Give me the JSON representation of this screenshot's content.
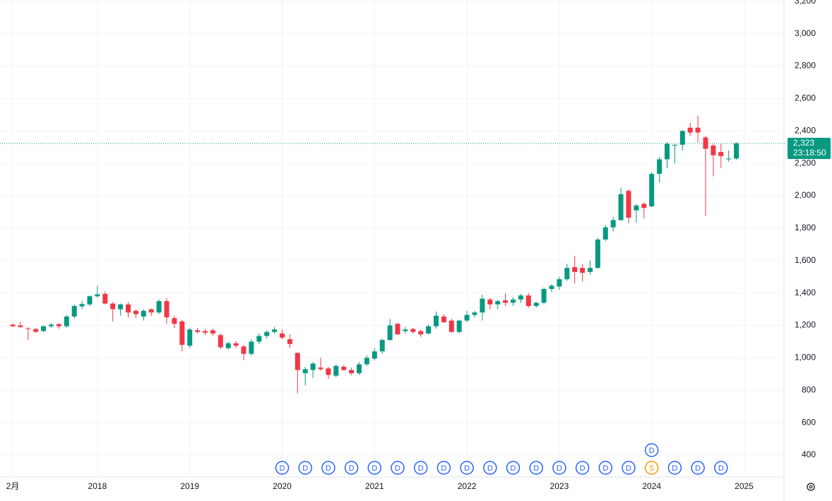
{
  "chart_data": {
    "type": "candlestick",
    "categories": [
      "2月",
      null,
      null,
      null,
      null,
      null,
      null,
      null,
      null,
      null,
      null,
      "2018",
      null,
      null,
      null,
      null,
      null,
      null,
      null,
      null,
      null,
      null,
      null,
      "2019",
      null,
      null,
      null,
      null,
      null,
      null,
      null,
      null,
      null,
      null,
      null,
      "2020",
      null,
      null,
      null,
      null,
      null,
      null,
      null,
      null,
      null,
      null,
      null,
      "2021",
      null,
      null,
      null,
      null,
      null,
      null,
      null,
      null,
      null,
      null,
      null,
      "2022",
      null,
      null,
      null,
      null,
      null,
      null,
      null,
      null,
      null,
      null,
      null,
      "2023",
      null,
      null,
      null,
      null,
      null,
      null,
      null,
      null,
      null,
      null,
      null,
      "2024",
      null,
      null,
      null,
      null,
      null,
      null,
      null,
      null,
      null,
      null,
      null,
      "2025"
    ],
    "open": [
      1205,
      1200,
      1182,
      1178,
      1165,
      1195,
      1208,
      1195,
      1255,
      1318,
      1330,
      1380,
      1395,
      1335,
      1300,
      1330,
      1290,
      1255,
      1300,
      1280,
      1350,
      1245,
      1225,
      1075,
      1170,
      1165,
      1170,
      1140,
      1060,
      1090,
      1070,
      1025,
      1100,
      1135,
      1160,
      1150,
      1115,
      1030,
      905,
      925,
      940,
      935,
      890,
      945,
      925,
      905,
      960,
      995,
      1040,
      1110,
      1210,
      1165,
      1178,
      1165,
      1150,
      1195,
      1255,
      1230,
      1160,
      1230,
      1265,
      1280,
      1360,
      1330,
      1355,
      1340,
      1360,
      1385,
      1320,
      1340,
      1425,
      1440,
      1485,
      1560,
      1555,
      1530,
      1555,
      1730,
      1805,
      1850,
      2030,
      1910,
      1950,
      1935,
      2135,
      2225,
      2310,
      2315,
      2420,
      2420,
      2360,
      2310,
      2270,
      2225,
      2230,
      null
    ],
    "high": [
      1212,
      1225,
      1190,
      1185,
      1200,
      1215,
      1215,
      1265,
      1330,
      1350,
      1385,
      1445,
      1410,
      1345,
      1335,
      1345,
      1300,
      1300,
      1305,
      1360,
      1370,
      1260,
      1235,
      1185,
      1185,
      1180,
      1180,
      1150,
      1100,
      1105,
      1080,
      1115,
      1150,
      1170,
      1190,
      1175,
      1145,
      1035,
      945,
      975,
      1000,
      945,
      960,
      955,
      940,
      975,
      1015,
      1060,
      1120,
      1240,
      1215,
      1190,
      1185,
      1175,
      1205,
      1285,
      1270,
      1240,
      1235,
      1290,
      1290,
      1390,
      1370,
      1360,
      1400,
      1375,
      1395,
      1400,
      1345,
      1435,
      1455,
      1500,
      1580,
      1630,
      1580,
      1600,
      1740,
      1820,
      1870,
      2050,
      2040,
      1950,
      1960,
      2145,
      2240,
      2330,
      2315,
      2405,
      2450,
      2495,
      2370,
      2320,
      2320,
      2280,
      2330,
      null
    ],
    "low": [
      1190,
      1185,
      1110,
      1155,
      1160,
      1185,
      1180,
      1185,
      1245,
      1300,
      1320,
      1370,
      1330,
      1225,
      1260,
      1250,
      1245,
      1230,
      1260,
      1270,
      1210,
      1185,
      1040,
      1060,
      1150,
      1140,
      1135,
      1055,
      1050,
      1060,
      985,
      1015,
      1085,
      1120,
      1150,
      1115,
      1060,
      780,
      830,
      875,
      920,
      870,
      880,
      920,
      895,
      895,
      950,
      985,
      1025,
      1105,
      1140,
      1150,
      1150,
      1130,
      1145,
      1180,
      1215,
      1155,
      1150,
      1220,
      1250,
      1230,
      1300,
      1300,
      1320,
      1320,
      1340,
      1310,
      1310,
      1330,
      1405,
      1420,
      1475,
      1460,
      1470,
      1515,
      1550,
      1720,
      1780,
      1845,
      1830,
      1835,
      1860,
      1930,
      2080,
      2170,
      2200,
      2280,
      2370,
      2330,
      1875,
      2120,
      2170,
      2210,
      2220,
      null
    ],
    "close": [
      1195,
      1190,
      1178,
      1160,
      1195,
      1205,
      1195,
      1255,
      1320,
      1332,
      1380,
      1392,
      1335,
      1300,
      1330,
      1280,
      1270,
      1290,
      1280,
      1350,
      1250,
      1210,
      1080,
      1175,
      1160,
      1155,
      1150,
      1065,
      1090,
      1075,
      1025,
      1100,
      1135,
      1160,
      1175,
      1125,
      1085,
      925,
      930,
      965,
      930,
      895,
      950,
      925,
      905,
      960,
      1000,
      1040,
      1110,
      1200,
      1145,
      1175,
      1160,
      1145,
      1195,
      1260,
      1220,
      1160,
      1230,
      1265,
      1280,
      1365,
      1330,
      1350,
      1340,
      1360,
      1385,
      1320,
      1340,
      1425,
      1445,
      1485,
      1555,
      1530,
      1525,
      1555,
      1730,
      1805,
      1850,
      2010,
      1865,
      1940,
      1925,
      2135,
      2225,
      2320,
      2315,
      2400,
      2390,
      2390,
      2290,
      2250,
      2245,
      2230,
      2323,
      null
    ],
    "markers": [
      null,
      null,
      null,
      null,
      null,
      null,
      null,
      null,
      null,
      null,
      null,
      null,
      null,
      null,
      null,
      null,
      null,
      null,
      null,
      null,
      null,
      null,
      null,
      null,
      null,
      null,
      null,
      null,
      null,
      null,
      null,
      null,
      null,
      null,
      null,
      [
        "D"
      ],
      null,
      null,
      [
        "D"
      ],
      null,
      null,
      [
        "D"
      ],
      null,
      null,
      [
        "D"
      ],
      null,
      null,
      [
        "D"
      ],
      null,
      null,
      [
        "D"
      ],
      null,
      null,
      [
        "D"
      ],
      null,
      null,
      [
        "D"
      ],
      null,
      null,
      [
        "D"
      ],
      null,
      null,
      [
        "D"
      ],
      null,
      null,
      [
        "D"
      ],
      null,
      null,
      [
        "D"
      ],
      null,
      null,
      [
        "D"
      ],
      null,
      null,
      [
        "D"
      ],
      null,
      null,
      [
        "D"
      ],
      null,
      null,
      [
        "D"
      ],
      null,
      null,
      [
        "S",
        "D"
      ],
      null,
      null,
      [
        "D"
      ],
      null,
      null,
      [
        "D"
      ],
      null,
      null,
      [
        "D"
      ],
      null,
      null,
      null
    ],
    "up_color": "#089981",
    "down_color": "#f23645",
    "ylim": [
      265,
      3208
    ],
    "yticks": [
      {
        "value": 400,
        "label": "400"
      },
      {
        "value": 600,
        "label": "600"
      },
      {
        "value": 800,
        "label": "800"
      },
      {
        "value": 1000,
        "label": "1,000"
      },
      {
        "value": 1200,
        "label": "1,200"
      },
      {
        "value": 1400,
        "label": "1,400"
      },
      {
        "value": 1600,
        "label": "1,600"
      },
      {
        "value": 1800,
        "label": "1,800"
      },
      {
        "value": 2000,
        "label": "2,000"
      },
      {
        "value": 2200,
        "label": "2,200"
      },
      {
        "value": 2400,
        "label": "2,400"
      },
      {
        "value": 2600,
        "label": "2,600"
      },
      {
        "value": 2800,
        "label": "2,800"
      },
      {
        "value": 3000,
        "label": "3,000"
      },
      {
        "value": 3200,
        "label": "3,200"
      }
    ],
    "grid": true,
    "last_price": {
      "value": 2323,
      "label": "2,323"
    },
    "countdown": "23:18:50"
  }
}
